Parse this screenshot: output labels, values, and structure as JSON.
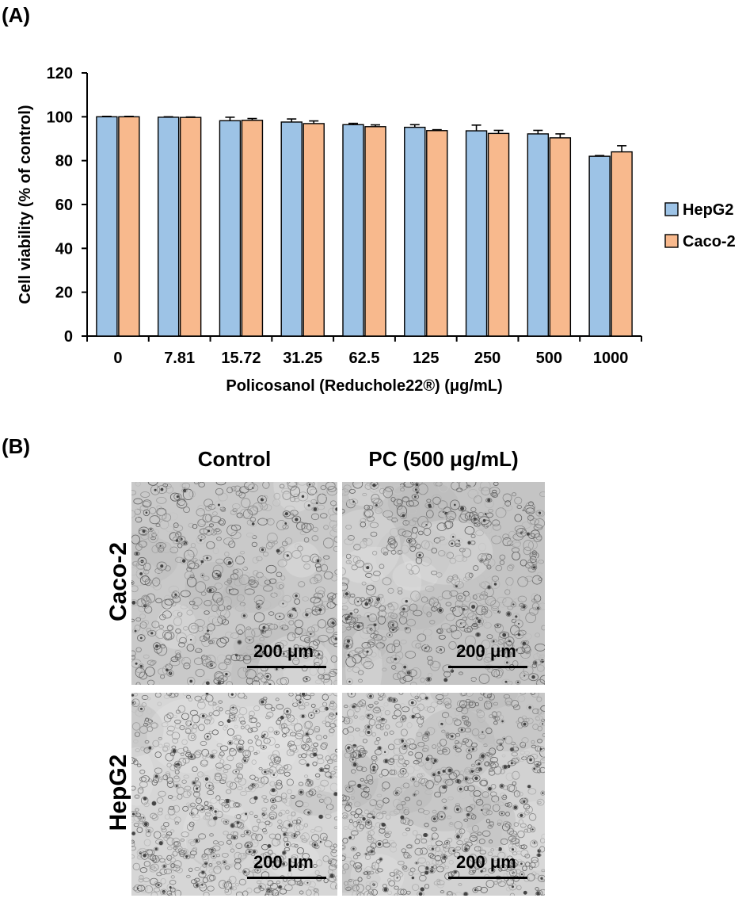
{
  "panel_a_label": "(A)",
  "panel_b_label": "(B)",
  "colors": {
    "HepG2": "#9dc3e6",
    "Caco-2": "#f8b98d"
  },
  "chart_data": {
    "type": "bar",
    "title": "",
    "xlabel": "Policosanol (Reduchole22®) (μg/mL)",
    "ylabel": "Cell viability (% of control)",
    "ylim": [
      0,
      120
    ],
    "yticks": [
      0,
      20,
      40,
      60,
      80,
      100,
      120
    ],
    "categories": [
      "0",
      "7.81",
      "15.72",
      "31.25",
      "62.5",
      "125",
      "250",
      "500",
      "1000"
    ],
    "series": [
      {
        "name": "HepG2",
        "values": [
          100,
          99.8,
          98.2,
          97.6,
          96.4,
          95.2,
          93.6,
          92.2,
          82.0
        ],
        "errors": [
          0.2,
          0.2,
          1.6,
          1.4,
          0.6,
          1.2,
          2.6,
          1.6,
          0.3
        ]
      },
      {
        "name": "Caco-2",
        "values": [
          100,
          99.7,
          98.4,
          96.9,
          95.5,
          93.7,
          92.4,
          90.4,
          84.0
        ],
        "errors": [
          0.2,
          0.2,
          0.8,
          1.2,
          0.8,
          0.4,
          1.4,
          1.8,
          2.8
        ]
      }
    ],
    "legend_position": "right",
    "grid": false
  },
  "panel_b": {
    "columns": [
      "Control",
      "PC (500 μg/mL)"
    ],
    "rows": [
      "Caco-2",
      "HepG2"
    ],
    "scale_label": "200 μm"
  }
}
